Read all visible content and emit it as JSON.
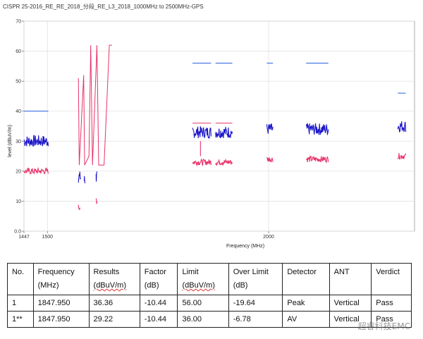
{
  "chart_title": "CISPR 25-2016_RE_RE_2018_分段_RE_L3_2018_1000MHz to 2500MHz-GPS",
  "chart_data": {
    "type": "line",
    "xlabel": "Frequency (MHz)",
    "ylabel": "level (dBuV/m)",
    "xlim": [
      1447,
      2330
    ],
    "ylim": [
      0,
      70
    ],
    "x_ticks": [
      1447,
      1500,
      2000
    ],
    "y_ticks": [
      0,
      10,
      20,
      30,
      40,
      50,
      60,
      70
    ],
    "y_tick_labels": [
      "0.0",
      "10",
      "20",
      "30",
      "40",
      "50",
      "60",
      "70"
    ],
    "grid": true,
    "colors": {
      "limit_peak": "#3b6fe0",
      "peak_trace": "#1a14c8",
      "av_trace": "#e8336a",
      "limit_av": "#e8336a"
    },
    "limit_peak_segments": [
      [
        1447,
        1502,
        40
      ],
      [
        1828,
        1870,
        56
      ],
      [
        1880,
        1918,
        56
      ],
      [
        1996,
        2010,
        56
      ],
      [
        2085,
        2135,
        56
      ],
      [
        2292,
        2310,
        46
      ]
    ],
    "limit_av_segments": [
      [
        1828,
        1870,
        36
      ],
      [
        1880,
        1918,
        36
      ]
    ],
    "peak_bands": [
      [
        1447,
        1502,
        30
      ],
      [
        1570,
        1575,
        18
      ],
      [
        1583,
        1585,
        17
      ],
      [
        1610,
        1612,
        18
      ],
      [
        1828,
        1870,
        33
      ],
      [
        1880,
        1918,
        33
      ],
      [
        1996,
        2010,
        34
      ],
      [
        2085,
        2135,
        34
      ],
      [
        2292,
        2310,
        35
      ]
    ],
    "av_bands": [
      [
        1447,
        1502,
        20
      ],
      [
        1570,
        1574,
        8
      ],
      [
        1610,
        1612,
        10
      ],
      [
        1828,
        1870,
        23
      ],
      [
        1880,
        1918,
        23
      ],
      [
        1996,
        2010,
        24
      ],
      [
        2085,
        2135,
        24
      ],
      [
        2292,
        2310,
        25
      ]
    ],
    "av_limit_lines": {
      "name": "pink limit polyline",
      "x": [
        1570,
        1572,
        1582,
        1584,
        1594,
        1598,
        1602,
        1612,
        1616,
        1628,
        1640,
        1646
      ],
      "y": [
        51,
        22,
        52,
        22,
        25,
        62,
        22,
        62,
        22,
        22,
        62,
        62
      ]
    },
    "av_spikes": [
      [
        1846,
        25,
        30
      ]
    ]
  },
  "table": {
    "headers": [
      [
        "No.",
        ""
      ],
      [
        "Frequency",
        "(MHz)"
      ],
      [
        "Results",
        "(dBuV/m)"
      ],
      [
        "Factor",
        "(dB)"
      ],
      [
        "Limit",
        "(dBuV/m)"
      ],
      [
        "Over Limit",
        "(dB)"
      ],
      [
        "Detector",
        ""
      ],
      [
        "ANT",
        ""
      ],
      [
        "Verdict",
        ""
      ]
    ],
    "rows": [
      [
        "1",
        "1847.950",
        "36.36",
        "-10.44",
        "56.00",
        "-19.64",
        "Peak",
        "Vertical",
        "Pass"
      ],
      [
        "1**",
        "1847.950",
        "29.22",
        "-10.44",
        "36.00",
        "-6.78",
        "AV",
        "Vertical",
        "Pass"
      ]
    ]
  },
  "watermark": "超睿科技EMC"
}
